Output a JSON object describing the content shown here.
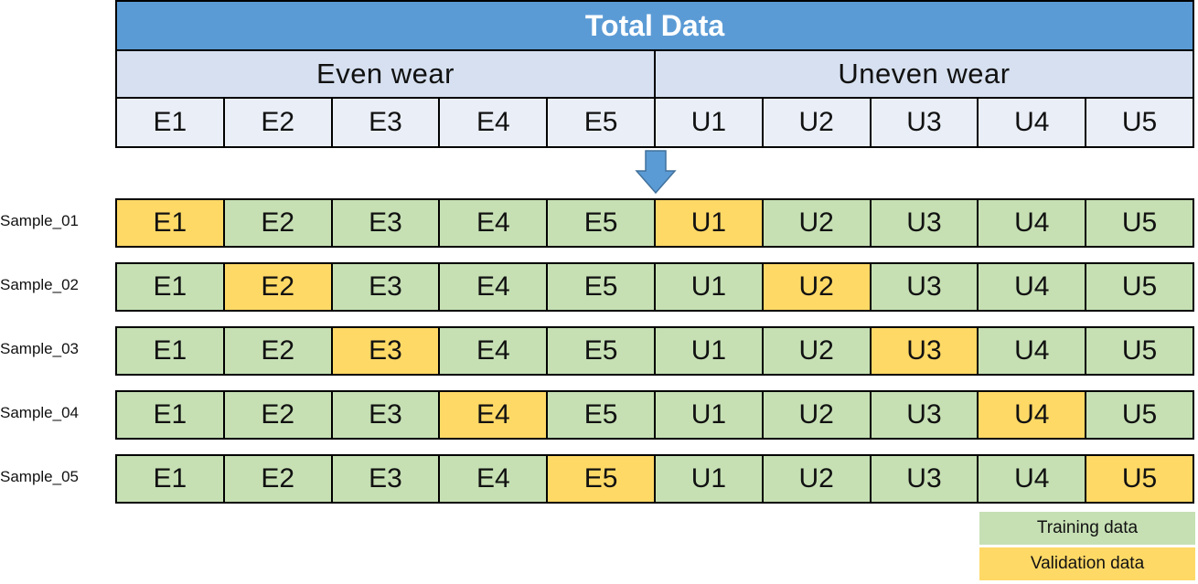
{
  "header": {
    "title": "Total Data",
    "groups": [
      "Even wear",
      "Uneven wear"
    ],
    "ids": [
      "E1",
      "E2",
      "E3",
      "E4",
      "E5",
      "U1",
      "U2",
      "U3",
      "U4",
      "U5"
    ]
  },
  "samples": [
    {
      "label": "Sample_01",
      "cells": [
        "E1",
        "E2",
        "E3",
        "E4",
        "E5",
        "U1",
        "U2",
        "U3",
        "U4",
        "U5"
      ],
      "validation": [
        0,
        5
      ]
    },
    {
      "label": "Sample_02",
      "cells": [
        "E1",
        "E2",
        "E3",
        "E4",
        "E5",
        "U1",
        "U2",
        "U3",
        "U4",
        "U5"
      ],
      "validation": [
        1,
        6
      ]
    },
    {
      "label": "Sample_03",
      "cells": [
        "E1",
        "E2",
        "E3",
        "E4",
        "E5",
        "U1",
        "U2",
        "U3",
        "U4",
        "U5"
      ],
      "validation": [
        2,
        7
      ]
    },
    {
      "label": "Sample_04",
      "cells": [
        "E1",
        "E2",
        "E3",
        "E4",
        "E5",
        "U1",
        "U2",
        "U3",
        "U4",
        "U5"
      ],
      "validation": [
        3,
        8
      ]
    },
    {
      "label": "Sample_05",
      "cells": [
        "E1",
        "E2",
        "E3",
        "E4",
        "E5",
        "U1",
        "U2",
        "U3",
        "U4",
        "U5"
      ],
      "validation": [
        4,
        9
      ]
    }
  ],
  "legend": {
    "training": "Training data",
    "validation": "Validation data"
  },
  "colors": {
    "title_bg": "#5b9bd5",
    "group_bg": "#d6e0f0",
    "id_bg": "#eaeff7",
    "training": "#c6e0b4",
    "validation": "#ffd966",
    "arrow": "#5b9bd5"
  }
}
